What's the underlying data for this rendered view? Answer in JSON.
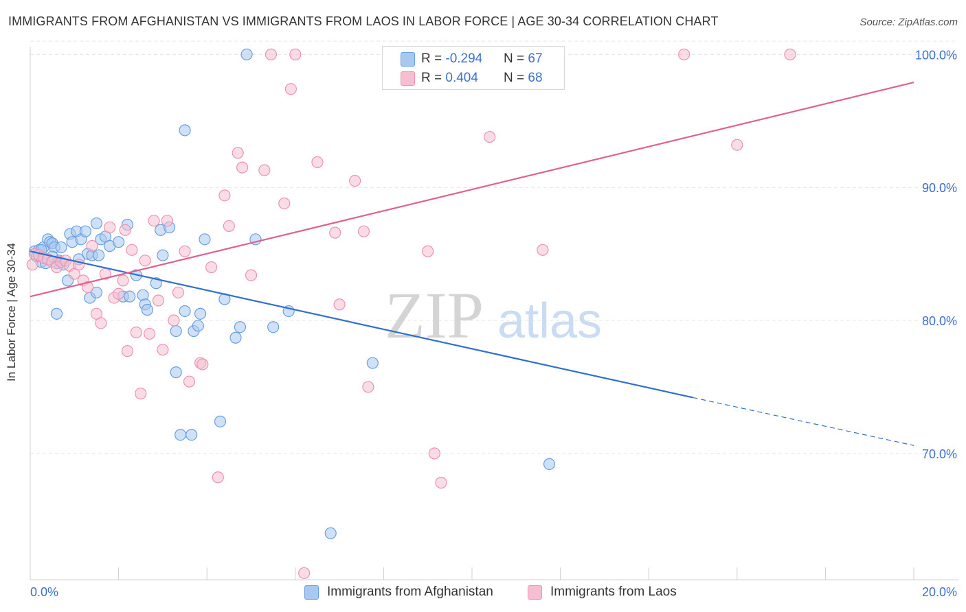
{
  "header": {
    "title": "IMMIGRANTS FROM AFGHANISTAN VS IMMIGRANTS FROM LAOS IN LABOR FORCE | AGE 30-34 CORRELATION CHART",
    "source": "Source: ZipAtlas.com"
  },
  "watermark": {
    "zip": "ZIP",
    "atlas": "atlas"
  },
  "legend": {
    "series1": {
      "r_label": "R = ",
      "r_value": "-0.294",
      "n_label": "N = ",
      "n_value": "67"
    },
    "series2": {
      "r_label": "R = ",
      "r_value": "0.404",
      "n_label": "N = ",
      "n_value": "68"
    }
  },
  "colors": {
    "blue_fill": "#a8c8f0",
    "blue_stroke": "#6a9fe0",
    "blue_line": "#2f6fd0",
    "pink_fill": "#f6bfd0",
    "pink_stroke": "#eb93b0",
    "pink_line": "#e0608e",
    "tick_text": "#3b6fd0",
    "grid": "#e4e4e4"
  },
  "chart_data": {
    "type": "scatter",
    "title": "IMMIGRANTS FROM AFGHANISTAN VS IMMIGRANTS FROM LAOS IN LABOR FORCE | AGE 30-34 CORRELATION CHART",
    "xlabel": "",
    "ylabel": "In Labor Force | Age 30-34",
    "xlim": [
      0,
      20
    ],
    "ylim": [
      60.5,
      101
    ],
    "x_tick_labels": [
      "0.0%",
      "20.0%"
    ],
    "y_ticks": [
      70,
      80,
      90,
      100
    ],
    "y_tick_labels": [
      "70.0%",
      "80.0%",
      "90.0%",
      "100.0%"
    ],
    "grid": true,
    "legend_position": "top-center",
    "series": [
      {
        "name": "Immigrants from Afghanistan",
        "color": "#6a9fe0",
        "trend": {
          "x": [
            0,
            15.0
          ],
          "y": [
            85.2,
            74.2
          ],
          "dashed_to": [
            20,
            70.6
          ]
        },
        "points": [
          [
            0.1,
            85.2
          ],
          [
            0.2,
            85.3
          ],
          [
            0.15,
            84.8
          ],
          [
            0.25,
            84.4
          ],
          [
            0.3,
            85.5
          ],
          [
            0.35,
            84.3
          ],
          [
            0.4,
            86.1
          ],
          [
            0.45,
            85.9
          ],
          [
            0.5,
            85.8
          ],
          [
            0.55,
            85.5
          ],
          [
            0.6,
            84.3
          ],
          [
            0.65,
            84.5
          ],
          [
            0.7,
            85.5
          ],
          [
            0.75,
            84.2
          ],
          [
            0.85,
            83.0
          ],
          [
            0.9,
            86.5
          ],
          [
            0.95,
            85.9
          ],
          [
            1.05,
            86.7
          ],
          [
            1.15,
            86.1
          ],
          [
            1.25,
            86.7
          ],
          [
            1.3,
            85.0
          ],
          [
            1.4,
            84.9
          ],
          [
            1.5,
            87.3
          ],
          [
            1.6,
            86.1
          ],
          [
            1.7,
            86.3
          ],
          [
            1.8,
            85.6
          ],
          [
            2.0,
            85.9
          ],
          [
            2.2,
            87.2
          ],
          [
            1.1,
            84.6
          ],
          [
            0.6,
            80.5
          ],
          [
            1.35,
            81.7
          ],
          [
            1.5,
            82.1
          ],
          [
            2.1,
            81.8
          ],
          [
            2.25,
            81.8
          ],
          [
            2.4,
            83.4
          ],
          [
            2.55,
            81.9
          ],
          [
            2.6,
            81.2
          ],
          [
            2.65,
            80.8
          ],
          [
            2.85,
            82.8
          ],
          [
            2.95,
            86.8
          ],
          [
            3.0,
            84.9
          ],
          [
            3.15,
            87.0
          ],
          [
            3.3,
            76.1
          ],
          [
            3.3,
            79.2
          ],
          [
            3.5,
            80.7
          ],
          [
            3.5,
            94.3
          ],
          [
            3.7,
            79.2
          ],
          [
            3.8,
            79.6
          ],
          [
            3.95,
            86.1
          ],
          [
            3.85,
            80.5
          ],
          [
            3.4,
            71.4
          ],
          [
            3.65,
            71.4
          ],
          [
            4.3,
            72.4
          ],
          [
            4.4,
            81.6
          ],
          [
            4.65,
            78.7
          ],
          [
            4.75,
            79.5
          ],
          [
            4.9,
            100.0
          ],
          [
            5.1,
            86.1
          ],
          [
            5.5,
            79.5
          ],
          [
            5.85,
            80.7
          ],
          [
            6.8,
            64.0
          ],
          [
            7.75,
            76.8
          ],
          [
            10.5,
            100.0
          ],
          [
            11.75,
            69.2
          ],
          [
            0.25,
            85.3
          ],
          [
            0.5,
            84.8
          ],
          [
            1.55,
            84.9
          ]
        ]
      },
      {
        "name": "Immigrants from Laos",
        "color": "#eb93b0",
        "trend": {
          "x": [
            0,
            20
          ],
          "y": [
            81.8,
            97.9
          ]
        },
        "points": [
          [
            0.05,
            84.2
          ],
          [
            0.1,
            85.0
          ],
          [
            0.2,
            84.9
          ],
          [
            0.3,
            84.7
          ],
          [
            0.4,
            84.6
          ],
          [
            0.5,
            84.4
          ],
          [
            0.6,
            84.0
          ],
          [
            0.7,
            84.4
          ],
          [
            0.8,
            84.5
          ],
          [
            0.9,
            84.1
          ],
          [
            1.0,
            83.5
          ],
          [
            1.1,
            84.2
          ],
          [
            1.2,
            83.0
          ],
          [
            1.3,
            82.5
          ],
          [
            1.4,
            85.6
          ],
          [
            1.5,
            80.5
          ],
          [
            1.6,
            79.8
          ],
          [
            1.7,
            83.5
          ],
          [
            1.8,
            87.0
          ],
          [
            1.9,
            81.7
          ],
          [
            2.0,
            82.0
          ],
          [
            2.1,
            83.0
          ],
          [
            2.15,
            86.8
          ],
          [
            2.2,
            77.7
          ],
          [
            2.3,
            85.3
          ],
          [
            2.4,
            79.1
          ],
          [
            2.5,
            74.5
          ],
          [
            2.6,
            84.5
          ],
          [
            2.7,
            79.0
          ],
          [
            2.8,
            87.5
          ],
          [
            2.9,
            81.5
          ],
          [
            3.0,
            77.8
          ],
          [
            3.1,
            87.5
          ],
          [
            3.25,
            80.0
          ],
          [
            3.35,
            82.1
          ],
          [
            3.5,
            85.2
          ],
          [
            3.6,
            75.4
          ],
          [
            3.85,
            76.8
          ],
          [
            3.9,
            76.7
          ],
          [
            4.1,
            84.0
          ],
          [
            4.25,
            68.2
          ],
          [
            4.4,
            89.4
          ],
          [
            4.5,
            87.1
          ],
          [
            4.7,
            92.6
          ],
          [
            4.8,
            91.5
          ],
          [
            5.0,
            83.4
          ],
          [
            5.3,
            91.3
          ],
          [
            5.45,
            100.0
          ],
          [
            5.75,
            88.8
          ],
          [
            5.9,
            97.4
          ],
          [
            6.0,
            100.0
          ],
          [
            6.2,
            61.0
          ],
          [
            6.5,
            91.9
          ],
          [
            6.9,
            86.6
          ],
          [
            7.0,
            81.2
          ],
          [
            7.35,
            90.5
          ],
          [
            7.55,
            86.7
          ],
          [
            7.65,
            75.0
          ],
          [
            8.5,
            100.0
          ],
          [
            8.55,
            100.0
          ],
          [
            9.0,
            85.2
          ],
          [
            9.15,
            70.0
          ],
          [
            9.3,
            67.8
          ],
          [
            10.4,
            93.8
          ],
          [
            11.6,
            85.3
          ],
          [
            14.8,
            100.0
          ],
          [
            16.0,
            93.2
          ],
          [
            17.2,
            100.0
          ]
        ]
      }
    ]
  }
}
